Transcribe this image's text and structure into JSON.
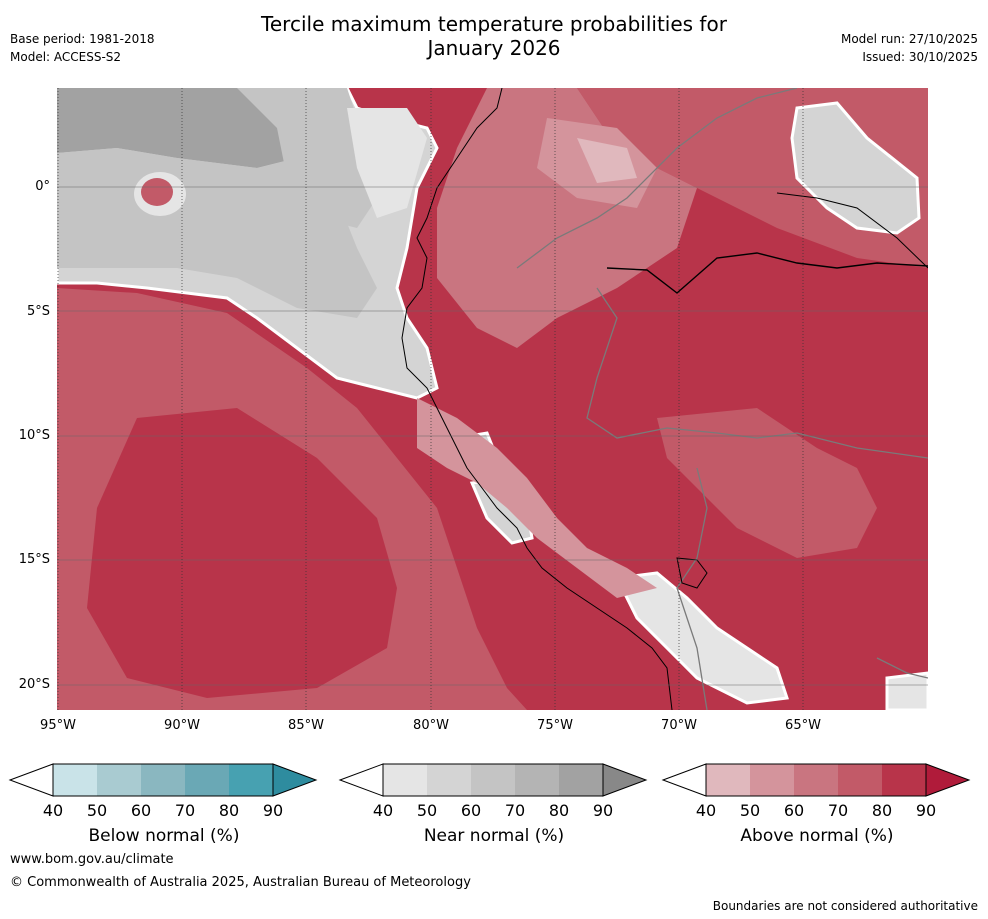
{
  "header": {
    "title_line1": "Tercile maximum temperature probabilities for",
    "title_line2": "January 2026",
    "base_period": "Base period: 1981-2018",
    "model": "Model: ACCESS-S2",
    "model_run": "Model run: 27/10/2025",
    "issued": "Issued: 30/10/2025"
  },
  "map": {
    "lat_labels": [
      "0°",
      "5°S",
      "10°S",
      "15°S",
      "20°S"
    ],
    "lon_labels": [
      "95°W",
      "90°W",
      "85°W",
      "80°W",
      "75°W",
      "70°W",
      "65°W"
    ]
  },
  "colorbars": [
    {
      "id": "below",
      "title": "Below normal (%)",
      "ticks": [
        "40",
        "50",
        "60",
        "70",
        "80",
        "90"
      ],
      "colors": [
        "#c9e3e8",
        "#a9cbd1",
        "#8ab7c0",
        "#6aa8b5",
        "#47a1b1",
        "#2e8c9f"
      ]
    },
    {
      "id": "near",
      "title": "Near normal (%)",
      "ticks": [
        "40",
        "50",
        "60",
        "70",
        "80",
        "90"
      ],
      "colors": [
        "#e5e5e5",
        "#d4d4d4",
        "#c4c4c4",
        "#b4b4b4",
        "#a2a2a2",
        "#888888"
      ]
    },
    {
      "id": "above",
      "title": "Above normal (%)",
      "ticks": [
        "40",
        "50",
        "60",
        "70",
        "80",
        "90"
      ],
      "colors": [
        "#e0b8bd",
        "#d4949c",
        "#c97580",
        "#c25a68",
        "#b8344a",
        "#b01b3a"
      ]
    }
  ],
  "footer": {
    "url": "www.bom.gov.au/climate",
    "copyright": "© Commonwealth of Australia 2025, Australian Bureau of Meteorology",
    "note": "Boundaries are not considered authoritative"
  }
}
